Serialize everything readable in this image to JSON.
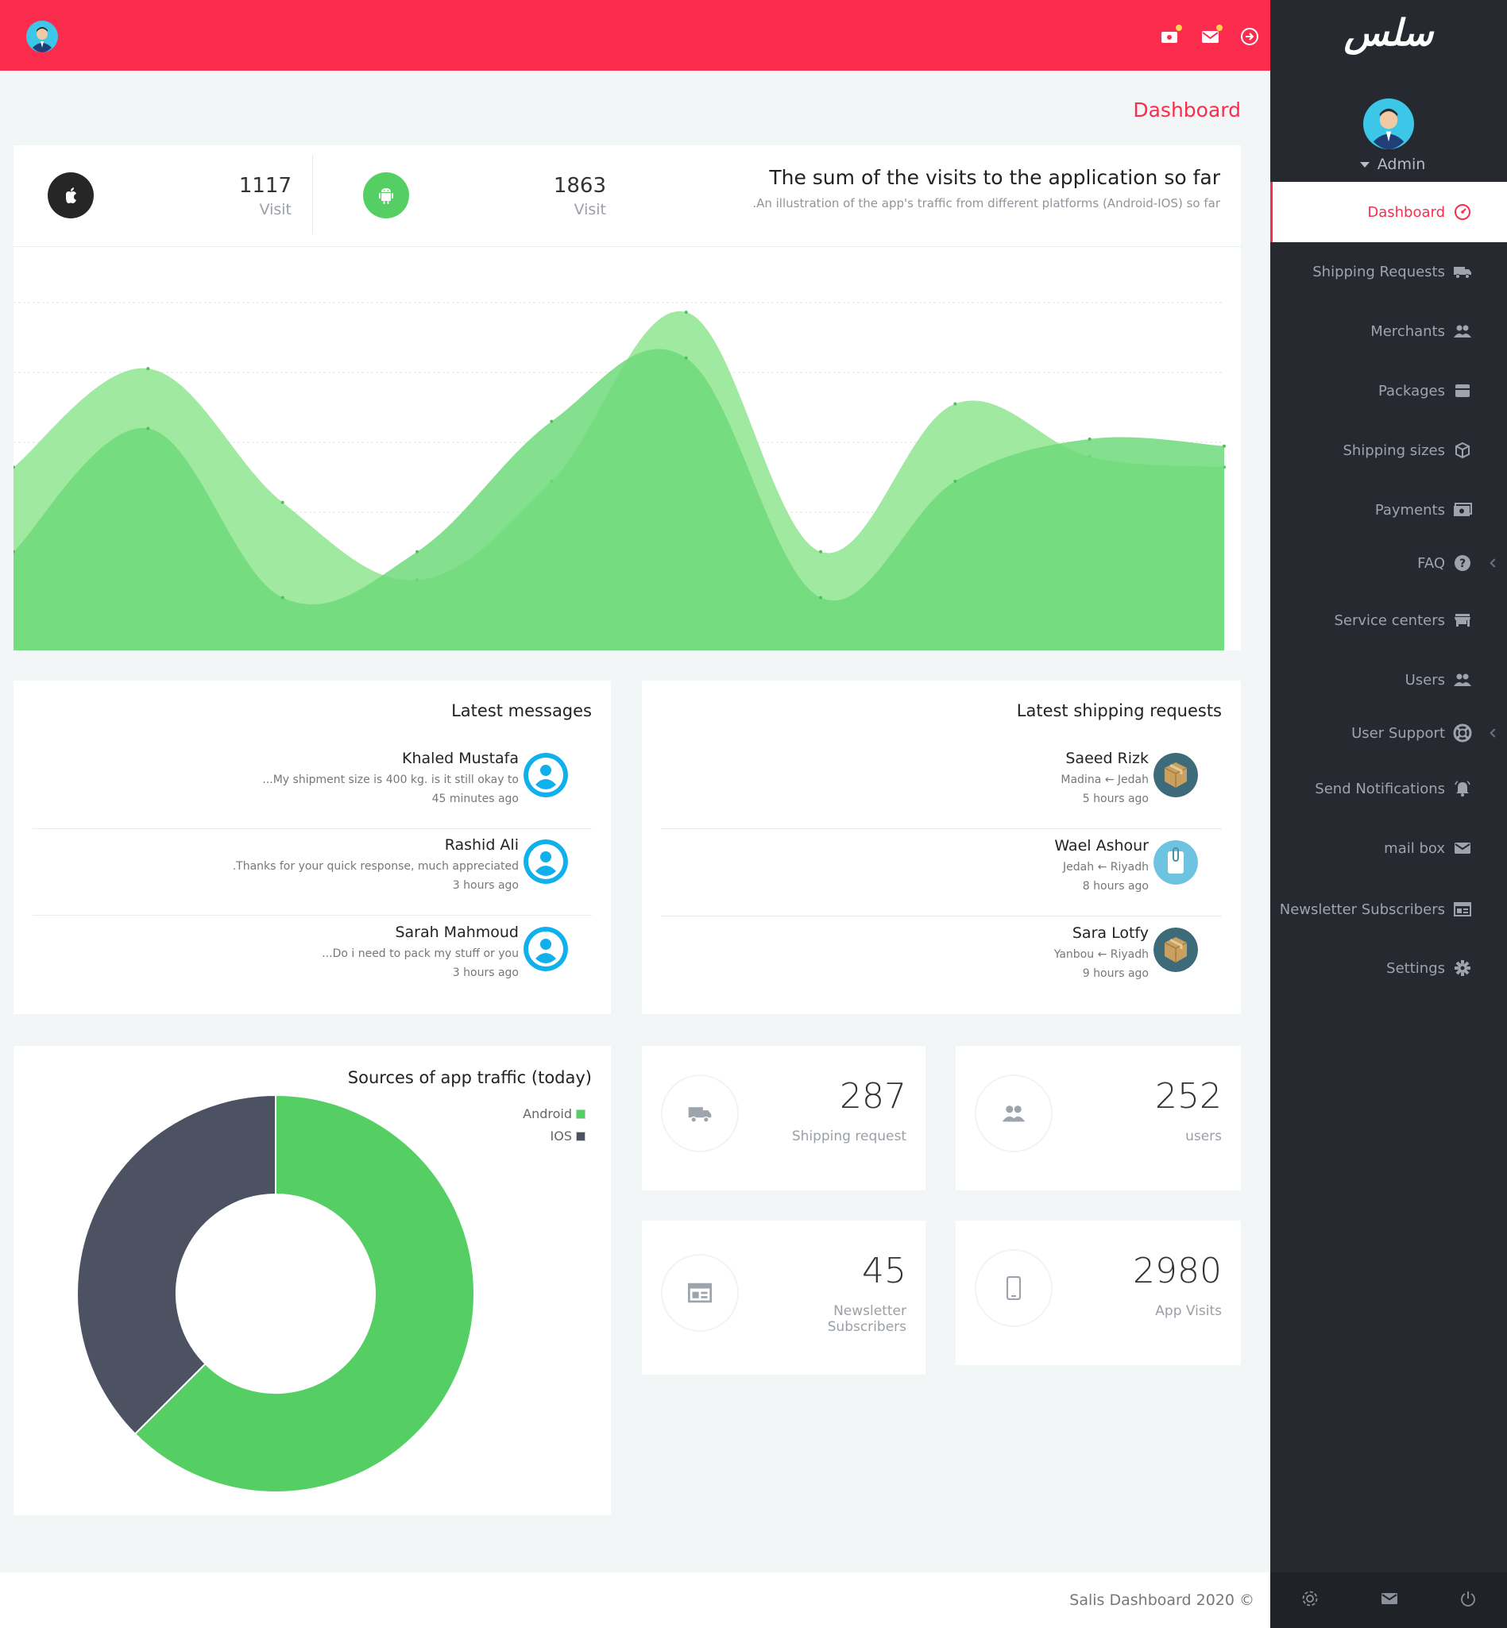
{
  "sidebar": {
    "logo": "سلس",
    "user": "Admin",
    "items": [
      {
        "label": "Dashboard",
        "icon": "dashboard-icon",
        "active": true
      },
      {
        "label": "Shipping Requests",
        "icon": "truck-icon"
      },
      {
        "label": "Merchants",
        "icon": "people-icon"
      },
      {
        "label": "Packages",
        "icon": "package-icon"
      },
      {
        "label": "Shipping sizes",
        "icon": "cube-icon"
      },
      {
        "label": "Payments",
        "icon": "money-icon"
      },
      {
        "label": "FAQ",
        "icon": "help-icon",
        "has_submenu": true
      },
      {
        "label": "Service centers",
        "icon": "store-icon"
      },
      {
        "label": "Users",
        "icon": "people-icon"
      },
      {
        "label": "User Support",
        "icon": "lifebuoy-icon",
        "has_submenu": true
      },
      {
        "label": "Send Notifications",
        "icon": "bell-icon"
      },
      {
        "label": "mail box",
        "icon": "mail-icon"
      },
      {
        "label": "Newsletter Subscribers",
        "icon": "newsletter-icon"
      },
      {
        "label": "Settings",
        "icon": "gear-icon"
      }
    ]
  },
  "page": {
    "title": "Dashboard"
  },
  "visits": {
    "ios": {
      "value": "1117",
      "label": "Visit"
    },
    "android": {
      "value": "1863",
      "label": "Visit"
    },
    "title": "The sum of the visits to the application so far",
    "subtitle": ".An illustration of the app's traffic from different platforms (Android-IOS) so far"
  },
  "chart_data": [
    {
      "type": "area",
      "x": [
        0,
        1,
        2,
        3,
        4,
        5,
        6,
        7,
        8,
        9
      ],
      "series": [
        {
          "values": [
            52,
            80,
            42,
            20,
            48,
            96,
            28,
            70,
            55,
            52
          ],
          "color": "#9fe9a0"
        },
        {
          "values": [
            28,
            63,
            15,
            28,
            65,
            83,
            15,
            48,
            60,
            58
          ],
          "color": "#6ed97a"
        }
      ],
      "ylim": [
        0,
        110
      ],
      "grid": true
    },
    {
      "type": "pie",
      "title": "Sources of app traffic (today)",
      "categories": [
        "Android",
        "IOS"
      ],
      "values": [
        1863,
        1117
      ],
      "colors": [
        "#55cf63",
        "#4d5263"
      ],
      "legend": "top-right"
    }
  ],
  "messages": {
    "title": "Latest messages",
    "items": [
      {
        "name": "Khaled Mustafa",
        "text": "...My shipment size is 400 kg. is it still okay to",
        "time": "45 minutes ago"
      },
      {
        "name": "Rashid Ali",
        "text": ".Thanks for your quick response, much appreciated",
        "time": "3 hours ago"
      },
      {
        "name": "Sarah Mahmoud",
        "text": "...Do i need to pack my stuff or you",
        "time": "3 hours ago"
      }
    ]
  },
  "shipping": {
    "title": "Latest shipping requests",
    "items": [
      {
        "name": "Saeed Rizk",
        "route": "Madina ← Jedah",
        "time": "5 hours ago",
        "icon": "box-icon"
      },
      {
        "name": "Wael Ashour",
        "route": "Jedah ← Riyadh",
        "time": "8 hours ago",
        "icon": "envelope-package-icon"
      },
      {
        "name": "Sara Lotfy",
        "route": "Yanbou ← Riyadh",
        "time": "9 hours ago",
        "icon": "box-icon"
      }
    ]
  },
  "pie": {
    "title": "Sources of app traffic (today)",
    "legend": [
      {
        "label": "Android"
      },
      {
        "label": "IOS"
      }
    ]
  },
  "kpis": {
    "shipping": {
      "value": "287",
      "label": "Shipping request"
    },
    "users": {
      "value": "252",
      "label": "users"
    },
    "newsletter": {
      "value": "45",
      "label": "Newsletter Subscribers"
    },
    "app_visits": {
      "value": "2980",
      "label": "App Visits"
    }
  },
  "footer": {
    "text": "Salis Dashboard 2020 ©"
  },
  "colors": {
    "accent": "#fb2c4e",
    "sidebar": "#262930",
    "android": "#55cf63",
    "ios": "#4d5263"
  }
}
